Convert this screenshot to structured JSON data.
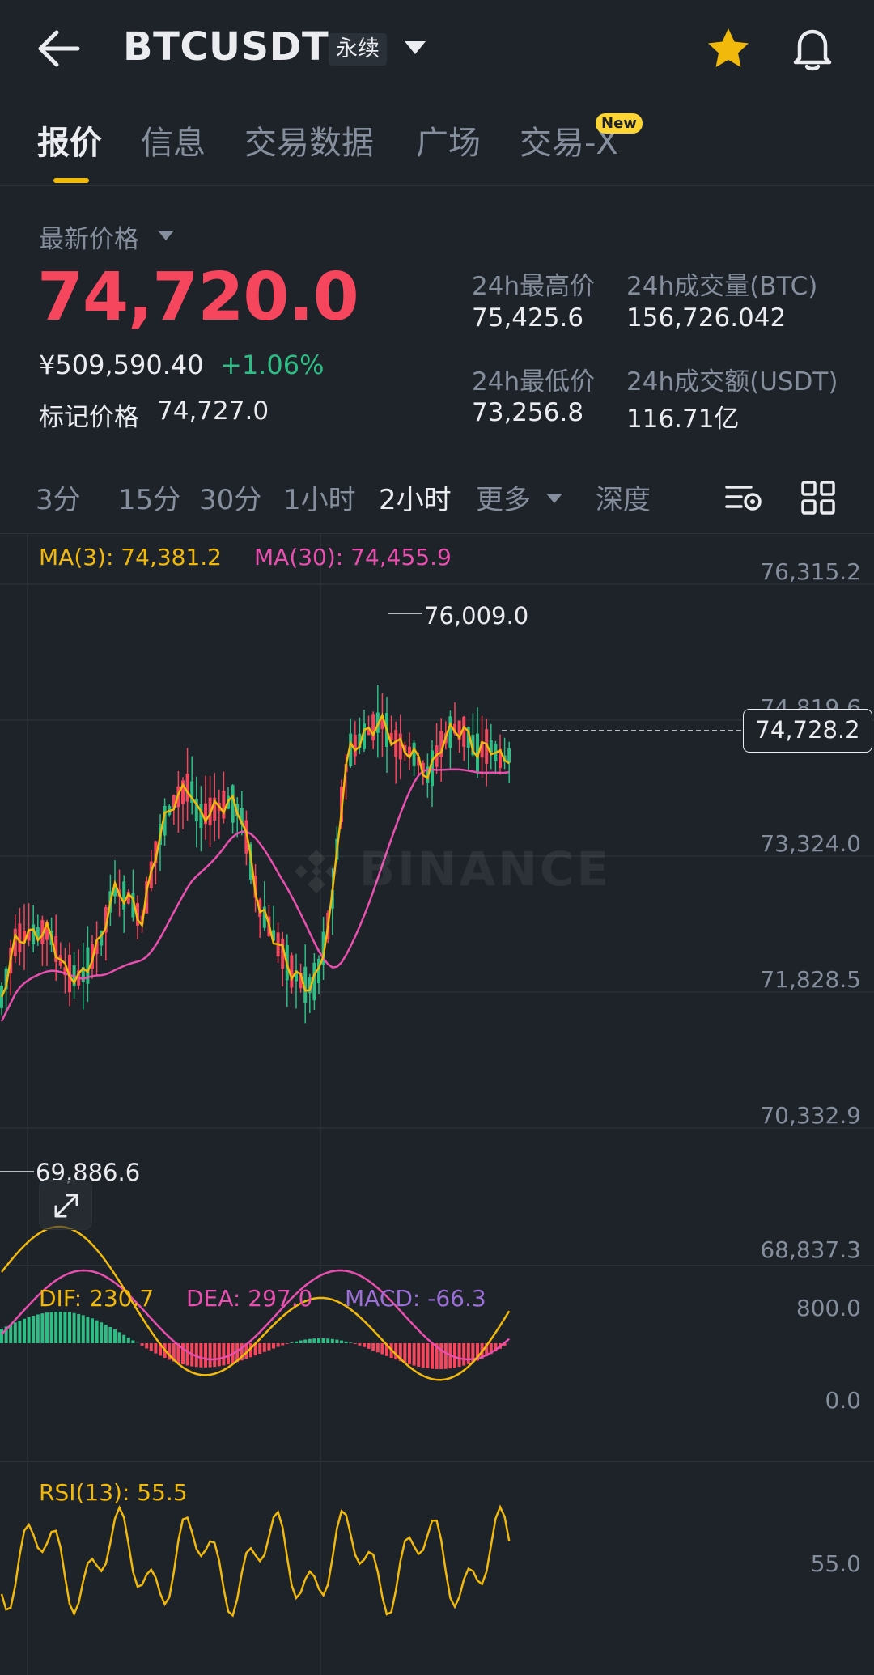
{
  "header": {
    "symbol": "BTCUSDT",
    "contract_type": "永续",
    "icons": [
      "back-arrow-icon",
      "chevron-down-icon",
      "star-icon",
      "bell-icon"
    ],
    "star_color": "#f0b90b"
  },
  "tabs": [
    {
      "label": "报价",
      "active": true
    },
    {
      "label": "信息"
    },
    {
      "label": "交易数据"
    },
    {
      "label": "广场"
    },
    {
      "label": "交易-X",
      "badge": "New"
    }
  ],
  "price": {
    "latest_label": "最新价格",
    "last_price": "74,720.0",
    "cny_value": "¥509,590.40",
    "change_pct": "+1.06%",
    "mark_label": "标记价格",
    "mark_value": "74,727.0"
  },
  "stats": {
    "high_label": "24h最高价",
    "high_value": "75,425.6",
    "vol_btc_label": "24h成交量(BTC)",
    "vol_btc_value": "156,726.042",
    "low_label": "24h最低价",
    "low_value": "73,256.8",
    "vol_usdt_label": "24h成交额(USDT)",
    "vol_usdt_value": "116.71亿"
  },
  "intervals": {
    "items": [
      "3分",
      "15分",
      "30分",
      "1小时",
      "2小时"
    ],
    "active": "2小时",
    "more": "更多",
    "depth": "深度"
  },
  "colors": {
    "up": "#2ebd85",
    "down": "#f6465d",
    "ma3": "#f0b90b",
    "ma30": "#e84fae",
    "accent": "#f0b90b",
    "macd": "#9b6fd6"
  },
  "indicators": {
    "ma3": "MA(3): 74,381.2",
    "ma30": "MA(30): 74,455.9",
    "dif": "DIF: 230.7",
    "dea": "DEA: 297.0",
    "macd": "MACD: -66.3",
    "rsi": "RSI(13): 55.5"
  },
  "chart": {
    "watermark": "BINANCE",
    "price_axis": [
      "76,315.2",
      "74,819.6",
      "73,324.0",
      "71,828.5",
      "70,332.9",
      "68,837.3"
    ],
    "current_price_tag": "74,728.2",
    "high_marker": "76,009.0",
    "low_marker": "69,886.6",
    "macd_axis": [
      "800.0",
      "0.0"
    ],
    "rsi_axis": "55.0"
  }
}
